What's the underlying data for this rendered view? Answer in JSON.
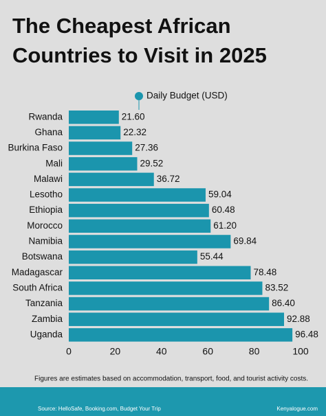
{
  "chart_data": {
    "type": "hbar",
    "title": [
      "The Cheapest African",
      "Countries to Visit in 2025"
    ],
    "categories": [
      "Rwanda",
      "Ghana",
      "Burkina Faso",
      "Mali",
      "Malawi",
      "Lesotho",
      "Ethiopia",
      "Morocco",
      "Namibia",
      "Botswana",
      "Madagascar",
      "South Africa",
      "Tanzania",
      "Zambia",
      "Uganda"
    ],
    "series": [
      {
        "name": "Daily Budget (USD)",
        "color": "#1b95ad",
        "values": [
          21.6,
          22.32,
          27.36,
          29.52,
          36.72,
          59.04,
          60.48,
          61.2,
          69.84,
          55.44,
          78.48,
          83.52,
          86.4,
          92.88,
          96.48
        ],
        "value_labels": [
          "21.60",
          "22.32",
          "27.36",
          "29.52",
          "36.72",
          "59.04",
          "60.48",
          "61.20",
          "69.84",
          "55.44",
          "78.48",
          "83.52",
          "86.40",
          "92.88",
          "96.48"
        ]
      }
    ],
    "xlim": [
      0,
      100
    ],
    "xticks": [
      0,
      20,
      40,
      60,
      80,
      100
    ],
    "note": "Figures are estimates based on accommodation, transport, food, and tourist activity costs.",
    "source": "Source: HelloSafe, Booking.com, Budget Your Trip",
    "website": "Kenyalogue.com"
  }
}
